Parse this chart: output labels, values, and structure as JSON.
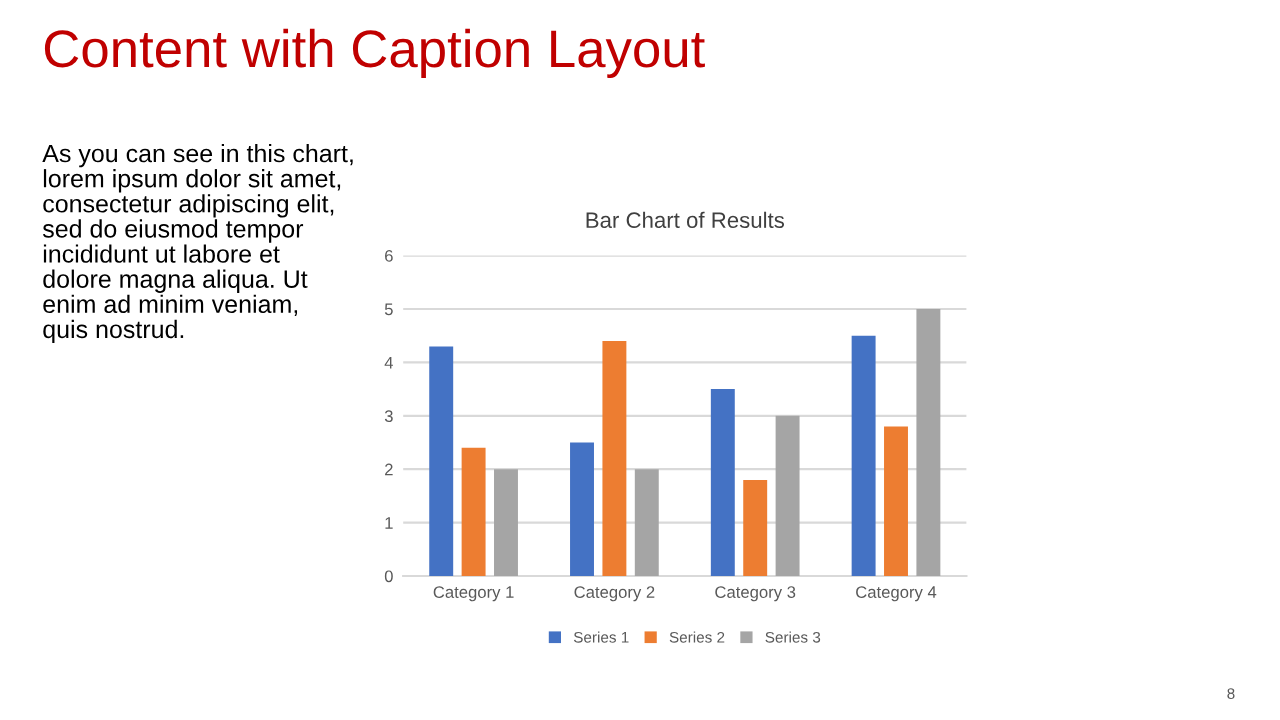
{
  "chart_data": {
    "type": "bar",
    "title": "Bar Chart of Results",
    "categories": [
      "Category 1",
      "Category 2",
      "Category 3",
      "Category 4"
    ],
    "series": [
      {
        "name": "Series 1",
        "color": "#4472c4",
        "values": [
          4.3,
          2.5,
          3.5,
          4.5
        ]
      },
      {
        "name": "Series 2",
        "color": "#ed7d31",
        "values": [
          2.4,
          4.4,
          1.8,
          2.8
        ]
      },
      {
        "name": "Series 3",
        "color": "#a5a5a5",
        "values": [
          2,
          2,
          3,
          5
        ]
      }
    ],
    "ylim": [
      0,
      6
    ],
    "yticks": [
      0,
      1,
      2,
      3,
      4,
      5,
      6
    ],
    "grid": "y",
    "legend": "bottom",
    "annotations": [
      "Content with Caption Layout",
      "As you can see in this chart,\nlorem ipsum dolor sit amet,\nconsectetur adipiscing elit,\nsed do eiusmod tempor\nincididunt ut labore et\ndolore magna aliqua. Ut\nenim ad minim veniam,\nquis nostrud.",
      "8"
    ]
  }
}
